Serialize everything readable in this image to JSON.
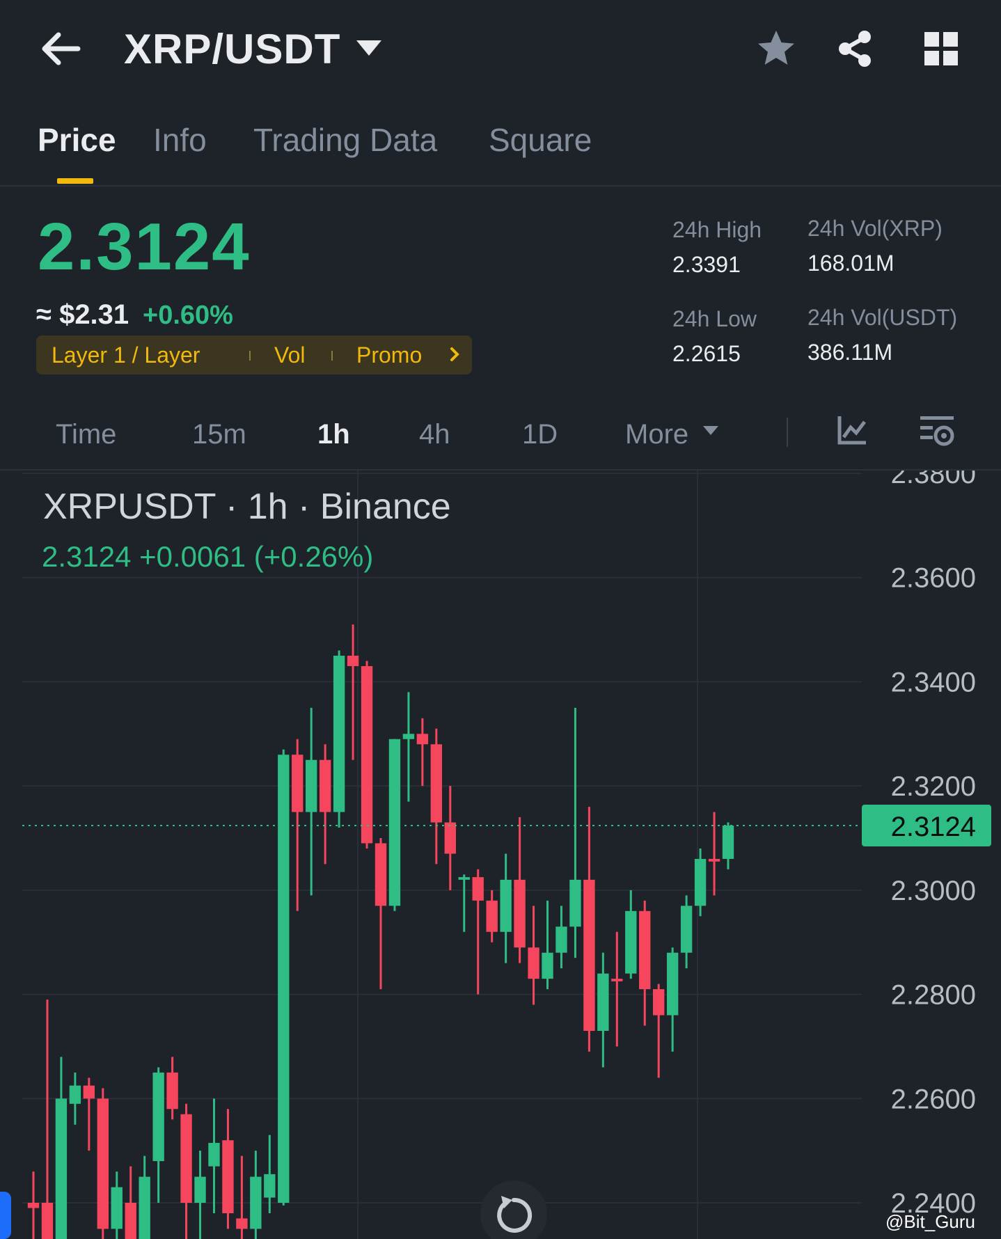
{
  "header": {
    "pair": "XRP/USDT"
  },
  "icons": {
    "back": "arrow-left-icon",
    "star": "star-icon",
    "share": "share-icon",
    "grid": "grid-icon",
    "refresh": "refresh-icon",
    "indicators": "chart-indicator-icon",
    "settings": "chart-settings-icon"
  },
  "tabs": [
    {
      "label": "Price",
      "active": true
    },
    {
      "label": "Info"
    },
    {
      "label": "Trading Data"
    },
    {
      "label": "Square"
    }
  ],
  "ticker": {
    "price": "2.3124",
    "usd_approx": "≈ $2.31",
    "change_pct": "+0.60%",
    "tags": [
      "Layer 1 / Layer",
      "Vol",
      "Promo"
    ],
    "stats": [
      {
        "label": "24h High",
        "value": "2.3391"
      },
      {
        "label": "24h Vol(XRP)",
        "value": "168.01M"
      },
      {
        "label": "24h Low",
        "value": "2.2615"
      },
      {
        "label": "24h Vol(USDT)",
        "value": "386.11M"
      }
    ]
  },
  "intervals": [
    {
      "label": "Time"
    },
    {
      "label": "15m"
    },
    {
      "label": "1h",
      "active": true
    },
    {
      "label": "4h"
    },
    {
      "label": "1D"
    },
    {
      "label": "More"
    }
  ],
  "chart_legend": {
    "title": "XRPUSDT · 1h · Binance",
    "change": "2.3124  +0.0061 (+0.26%)"
  },
  "watermark": "@Bit_Guru",
  "colors": {
    "up": "#2ebd85",
    "down": "#f6465d",
    "accent": "#f0b90b",
    "background": "#1e2329"
  },
  "chart_data": {
    "type": "candlestick",
    "y_ticks": [
      "2.3800",
      "2.3600",
      "2.3400",
      "2.3200",
      "2.3000",
      "2.2800",
      "2.2600",
      "2.2400"
    ],
    "ylim": [
      2.24,
      2.38
    ],
    "last_price": "2.3124",
    "candles": [
      {
        "o": 2.24,
        "h": 2.246,
        "l": 2.228,
        "c": 2.239
      },
      {
        "o": 2.24,
        "h": 2.279,
        "l": 2.23,
        "c": 2.233
      },
      {
        "o": 2.233,
        "h": 2.268,
        "l": 2.228,
        "c": 2.26
      },
      {
        "o": 2.259,
        "h": 2.265,
        "l": 2.255,
        "c": 2.2625
      },
      {
        "o": 2.2625,
        "h": 2.264,
        "l": 2.25,
        "c": 2.26
      },
      {
        "o": 2.26,
        "h": 2.262,
        "l": 2.228,
        "c": 2.235
      },
      {
        "o": 2.235,
        "h": 2.246,
        "l": 2.227,
        "c": 2.243
      },
      {
        "o": 2.24,
        "h": 2.247,
        "l": 2.225,
        "c": 2.232
      },
      {
        "o": 2.23,
        "h": 2.249,
        "l": 2.225,
        "c": 2.245
      },
      {
        "o": 2.248,
        "h": 2.266,
        "l": 2.24,
        "c": 2.265
      },
      {
        "o": 2.265,
        "h": 2.268,
        "l": 2.256,
        "c": 2.258
      },
      {
        "o": 2.257,
        "h": 2.259,
        "l": 2.23,
        "c": 2.24
      },
      {
        "o": 2.24,
        "h": 2.25,
        "l": 2.22,
        "c": 2.245
      },
      {
        "o": 2.247,
        "h": 2.26,
        "l": 2.238,
        "c": 2.2515
      },
      {
        "o": 2.252,
        "h": 2.258,
        "l": 2.235,
        "c": 2.238
      },
      {
        "o": 2.237,
        "h": 2.249,
        "l": 2.22,
        "c": 2.235
      },
      {
        "o": 2.235,
        "h": 2.25,
        "l": 2.23,
        "c": 2.245
      },
      {
        "o": 2.241,
        "h": 2.253,
        "l": 2.238,
        "c": 2.2455
      },
      {
        "o": 2.24,
        "h": 2.327,
        "l": 2.2395,
        "c": 2.326
      },
      {
        "o": 2.326,
        "h": 2.329,
        "l": 2.296,
        "c": 2.315
      },
      {
        "o": 2.315,
        "h": 2.335,
        "l": 2.299,
        "c": 2.325
      },
      {
        "o": 2.325,
        "h": 2.328,
        "l": 2.305,
        "c": 2.315
      },
      {
        "o": 2.315,
        "h": 2.346,
        "l": 2.312,
        "c": 2.345
      },
      {
        "o": 2.345,
        "h": 2.351,
        "l": 2.325,
        "c": 2.343
      },
      {
        "o": 2.343,
        "h": 2.344,
        "l": 2.308,
        "c": 2.309
      },
      {
        "o": 2.309,
        "h": 2.31,
        "l": 2.281,
        "c": 2.297
      },
      {
        "o": 2.297,
        "h": 2.329,
        "l": 2.296,
        "c": 2.329
      },
      {
        "o": 2.329,
        "h": 2.338,
        "l": 2.317,
        "c": 2.33
      },
      {
        "o": 2.33,
        "h": 2.333,
        "l": 2.32,
        "c": 2.328
      },
      {
        "o": 2.328,
        "h": 2.331,
        "l": 2.305,
        "c": 2.313
      },
      {
        "o": 2.313,
        "h": 2.32,
        "l": 2.3,
        "c": 2.307
      },
      {
        "o": 2.302,
        "h": 2.303,
        "l": 2.292,
        "c": 2.3025
      },
      {
        "o": 2.3025,
        "h": 2.304,
        "l": 2.28,
        "c": 2.298
      },
      {
        "o": 2.298,
        "h": 2.3,
        "l": 2.29,
        "c": 2.292
      },
      {
        "o": 2.292,
        "h": 2.307,
        "l": 2.286,
        "c": 2.302
      },
      {
        "o": 2.302,
        "h": 2.314,
        "l": 2.286,
        "c": 2.289
      },
      {
        "o": 2.289,
        "h": 2.297,
        "l": 2.278,
        "c": 2.283
      },
      {
        "o": 2.283,
        "h": 2.298,
        "l": 2.281,
        "c": 2.288
      },
      {
        "o": 2.288,
        "h": 2.297,
        "l": 2.285,
        "c": 2.293
      },
      {
        "o": 2.293,
        "h": 2.335,
        "l": 2.287,
        "c": 2.302
      },
      {
        "o": 2.302,
        "h": 2.316,
        "l": 2.269,
        "c": 2.273
      },
      {
        "o": 2.273,
        "h": 2.288,
        "l": 2.266,
        "c": 2.284
      },
      {
        "o": 2.283,
        "h": 2.292,
        "l": 2.27,
        "c": 2.2825
      },
      {
        "o": 2.284,
        "h": 2.3,
        "l": 2.283,
        "c": 2.296
      },
      {
        "o": 2.296,
        "h": 2.298,
        "l": 2.274,
        "c": 2.281
      },
      {
        "o": 2.281,
        "h": 2.282,
        "l": 2.264,
        "c": 2.276
      },
      {
        "o": 2.276,
        "h": 2.289,
        "l": 2.269,
        "c": 2.288
      },
      {
        "o": 2.288,
        "h": 2.299,
        "l": 2.285,
        "c": 2.297
      },
      {
        "o": 2.297,
        "h": 2.308,
        "l": 2.295,
        "c": 2.306
      },
      {
        "o": 2.306,
        "h": 2.315,
        "l": 2.299,
        "c": 2.3055
      },
      {
        "o": 2.306,
        "h": 2.313,
        "l": 2.304,
        "c": 2.3124
      }
    ]
  }
}
